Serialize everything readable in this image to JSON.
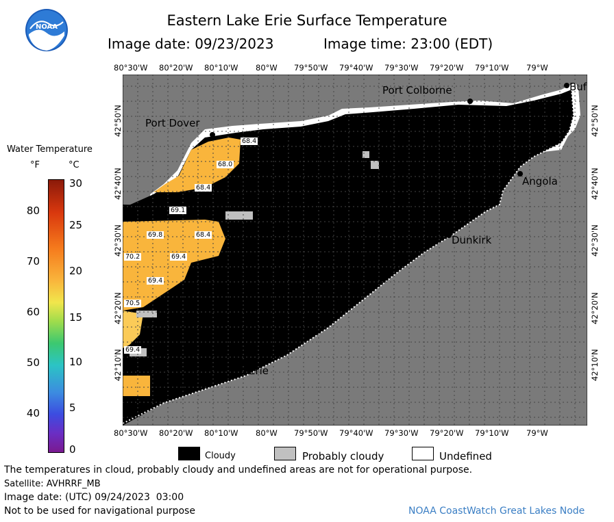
{
  "header": {
    "title": "Eastern Lake Erie Surface Temperature",
    "image_date": "Image date: 09/23/2023",
    "image_time": "Image time: 23:00 (EDT)"
  },
  "logo": {
    "text": "NOAA"
  },
  "map": {
    "top_lon_labels": [
      "80°30'W",
      "80°20'W",
      "80°10'W",
      "80°W",
      "79°50'W",
      "79°40'W",
      "79°30'W",
      "79°20'W",
      "79°10'W",
      "79°W"
    ],
    "bottom_lon_labels": [
      "80°30'W",
      "80°20'W",
      "80°10'W",
      "80°W",
      "79°50'W",
      "79°40'W",
      "79°30'W",
      "79°20'W",
      "79°10'W",
      "79°W"
    ],
    "lat_labels": [
      "42°50'N",
      "42°40'N",
      "42°30'N",
      "42°20'N",
      "42°10'N"
    ],
    "cities": {
      "port_colborne": "Port Colborne",
      "buffalo": "Buf",
      "port_dover": "Port Dover",
      "angola": "Angola",
      "dunkirk": "Dunkirk",
      "erie": "Erie"
    },
    "isotherms": [
      "68.4",
      "68.0",
      "68.4",
      "69.1",
      "69.8",
      "68.4",
      "70.2",
      "69.4",
      "69.4",
      "70.5",
      "69.4"
    ],
    "colors": {
      "land": "#7a7a7a",
      "cloud": "#000000",
      "warm": "#f9b53c",
      "warm_light": "#fbcb58",
      "probably_cloudy": "#c0c0c0"
    }
  },
  "colorbar": {
    "title": "Water Temperature",
    "unit_f": "°F",
    "unit_c": "°C",
    "f_ticks": [
      "80",
      "70",
      "60",
      "50",
      "40"
    ],
    "c_ticks": [
      "30",
      "25",
      "20",
      "15",
      "10",
      "5",
      "0"
    ]
  },
  "legend": {
    "cloudy": "Cloudy",
    "probably_cloudy": "Probably cloudy",
    "undefined": "Undefined"
  },
  "footer": {
    "disclaimer": "The temperatures in cloud, probably cloudy and undefined areas are not for operational purpose.",
    "satellite": "Satellite: AVHRRF_MB",
    "utc_date": "Image date: (UTC) 09/24/2023  03:00",
    "nav_warning": "Not to be used for navigational purpose",
    "credit": "NOAA CoastWatch Great Lakes Node"
  }
}
